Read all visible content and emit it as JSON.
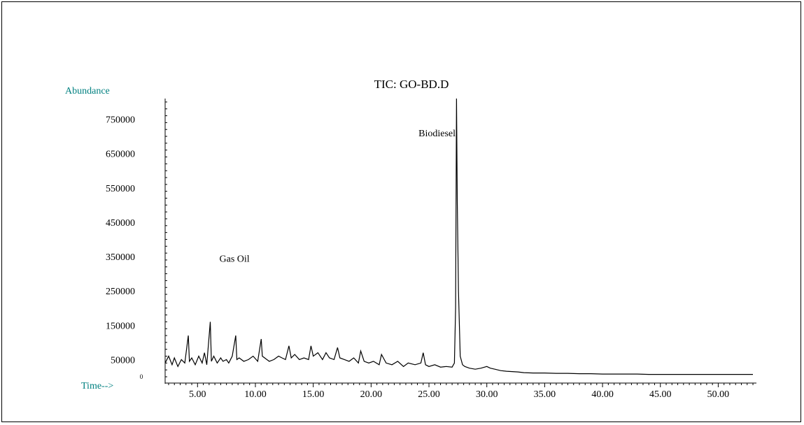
{
  "chart_data": {
    "type": "line",
    "title": "TIC: GO-BD.D",
    "ylabel": "Abundance",
    "xlabel": "Time-->",
    "y_zero_label": "0",
    "label_color": "#008080",
    "line_color": "#000000",
    "xlim": [
      2.2,
      53.3
    ],
    "ylim": [
      0,
      810000
    ],
    "x_ticks": [
      "5.00",
      "10.00",
      "15.00",
      "20.00",
      "25.00",
      "30.00",
      "35.00",
      "40.00",
      "45.00",
      "50.00"
    ],
    "y_ticks": [
      "750000",
      "650000",
      "550000",
      "450000",
      "350000",
      "250000",
      "150000",
      "50000"
    ],
    "annotations": [
      {
        "text": "Biodiesel",
        "x": 27.3,
        "y": 700000
      },
      {
        "text": "Gas Oil",
        "x": 9.5,
        "y": 335000
      }
    ],
    "series": [
      {
        "x": [
          2.2,
          2.5,
          2.8,
          3.0,
          3.3,
          3.6,
          3.9,
          4.2,
          4.3,
          4.5,
          4.8,
          5.1,
          5.4,
          5.6,
          5.8,
          6.1,
          6.2,
          6.4,
          6.7,
          7.0,
          7.2,
          7.5,
          7.7,
          8.0,
          8.3,
          8.4,
          8.6,
          9.0,
          9.4,
          9.8,
          10.2,
          10.5,
          10.6,
          10.8,
          11.2,
          11.6,
          12.0,
          12.3,
          12.6,
          12.9,
          13.1,
          13.4,
          13.8,
          14.2,
          14.6,
          14.8,
          15.0,
          15.4,
          15.8,
          16.1,
          16.4,
          16.8,
          17.1,
          17.3,
          17.7,
          18.1,
          18.5,
          18.9,
          19.1,
          19.4,
          19.8,
          20.2,
          20.7,
          20.9,
          21.3,
          21.8,
          22.3,
          22.8,
          23.2,
          23.8,
          24.3,
          24.5,
          24.7,
          25.0,
          25.5,
          26.0,
          26.5,
          27.0,
          27.2,
          27.3,
          27.38,
          27.45,
          27.55,
          27.7,
          27.9,
          28.1,
          28.5,
          29.0,
          29.5,
          30.0,
          30.3,
          30.7,
          31.2,
          31.7,
          32.2,
          32.7,
          33.2,
          34.0,
          35.0,
          36.0,
          37.0,
          38.0,
          39.0,
          40.0,
          41.0,
          42.0,
          43.0,
          44.0,
          45.0,
          46.0,
          47.0,
          48.0,
          49.0,
          50.0,
          51.0,
          52.0,
          53.0
        ],
        "y": [
          40000,
          60000,
          35000,
          55000,
          30000,
          50000,
          40000,
          120000,
          45000,
          55000,
          35000,
          60000,
          40000,
          70000,
          35000,
          160000,
          45000,
          60000,
          40000,
          55000,
          45000,
          50000,
          40000,
          60000,
          120000,
          50000,
          55000,
          45000,
          50000,
          60000,
          45000,
          110000,
          60000,
          55000,
          45000,
          50000,
          60000,
          55000,
          50000,
          90000,
          55000,
          65000,
          50000,
          55000,
          50000,
          90000,
          60000,
          70000,
          50000,
          70000,
          55000,
          50000,
          85000,
          55000,
          50000,
          45000,
          55000,
          40000,
          75000,
          45000,
          40000,
          45000,
          35000,
          65000,
          40000,
          35000,
          45000,
          30000,
          40000,
          35000,
          40000,
          70000,
          35000,
          30000,
          35000,
          28000,
          30000,
          28000,
          40000,
          200000,
          810000,
          510000,
          250000,
          60000,
          35000,
          30000,
          25000,
          22000,
          25000,
          30000,
          25000,
          22000,
          18000,
          16000,
          15000,
          14000,
          12000,
          11000,
          11000,
          10000,
          10000,
          9000,
          9000,
          8000,
          8000,
          8000,
          8000,
          7000,
          7000,
          7000,
          7000,
          7000,
          7000,
          7000,
          7000,
          7000,
          7000
        ]
      }
    ]
  }
}
